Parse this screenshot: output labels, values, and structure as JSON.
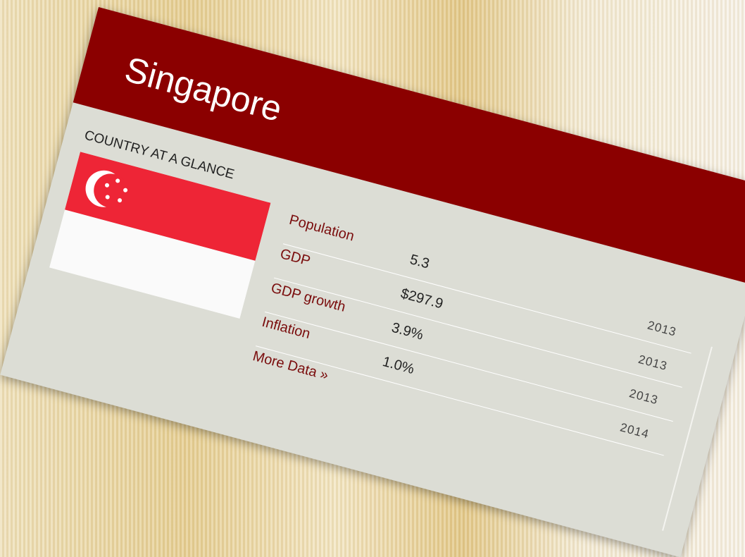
{
  "card": {
    "title": "Singapore",
    "subtitle": "COUNTRY AT A GLANCE",
    "rows": [
      {
        "label": "Population",
        "value": "5.3",
        "year": "2013"
      },
      {
        "label": "GDP",
        "value": "$297.9",
        "year": "2013"
      },
      {
        "label": "GDP growth",
        "value": "3.9%",
        "year": "2013"
      },
      {
        "label": "Inflation",
        "value": "1.0%",
        "year": "2014"
      }
    ],
    "more": "More Data »"
  }
}
